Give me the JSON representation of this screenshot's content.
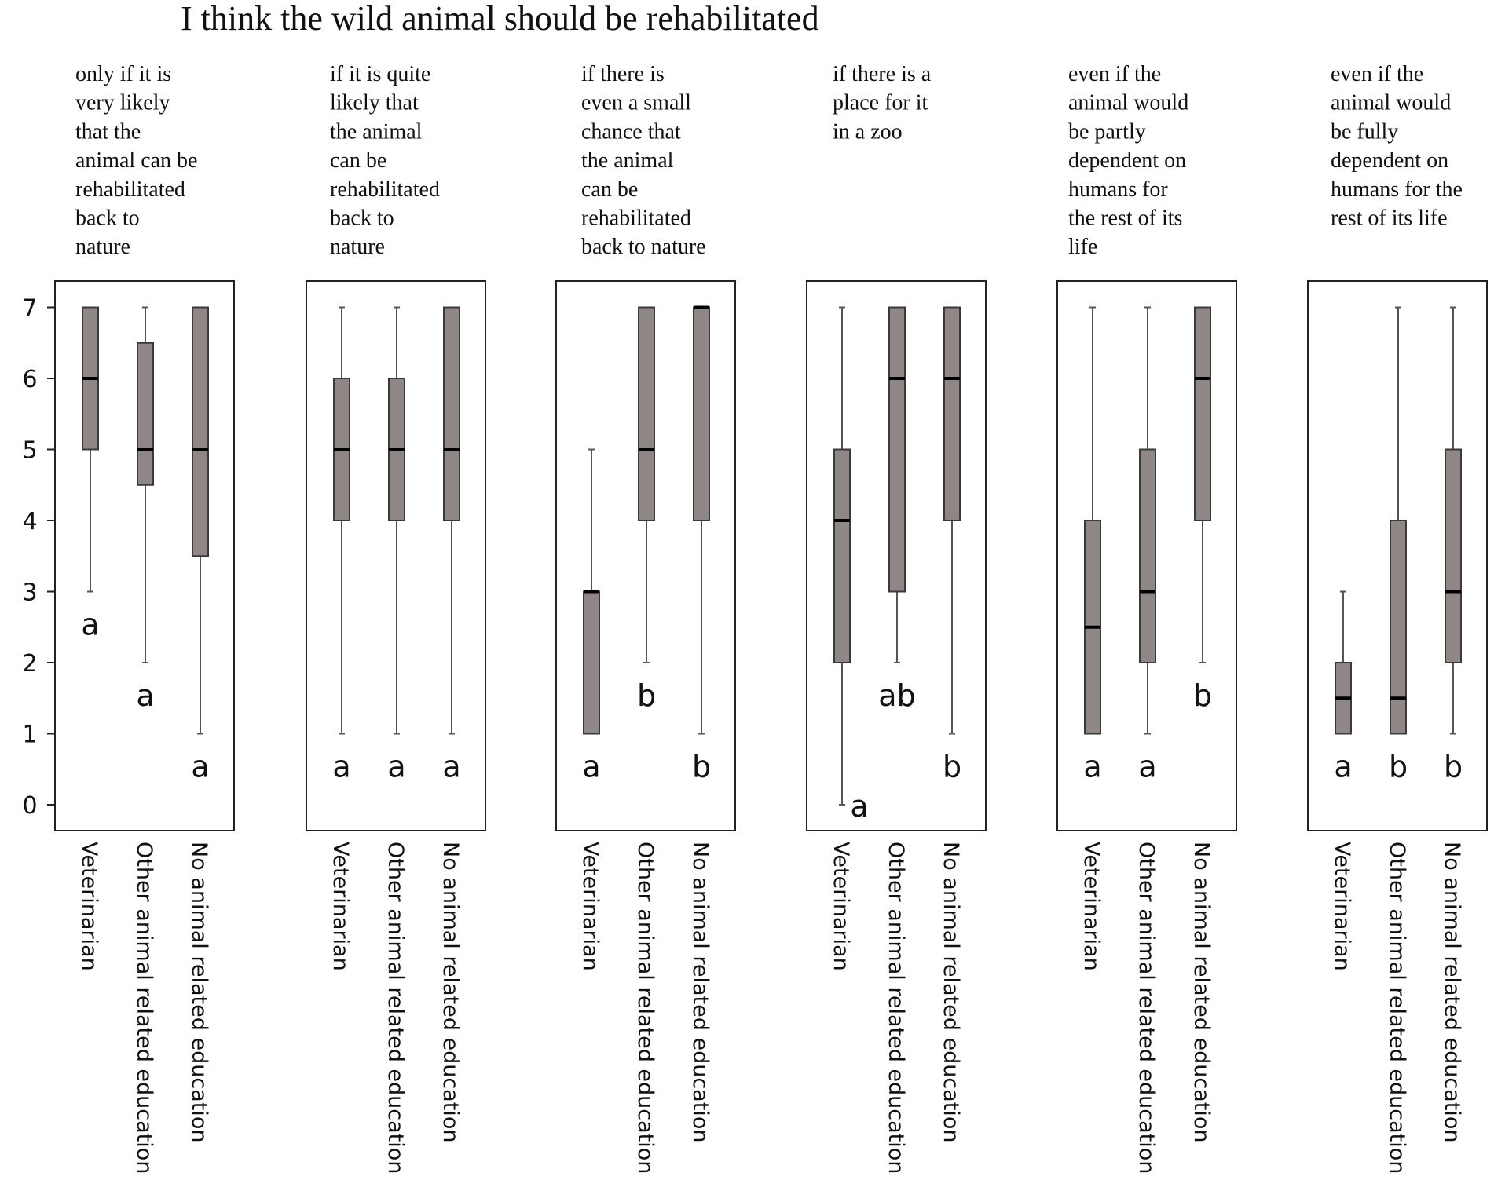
{
  "chart_data": {
    "type": "boxplot",
    "title": "I think the wild animal should be rehabilitated",
    "y_ticks": [
      0,
      1,
      2,
      3,
      4,
      5,
      6,
      7
    ],
    "ylim": [
      0,
      7
    ],
    "categories": [
      "Veterinarian",
      "Other animal related education",
      "No animal related education"
    ],
    "panels": [
      {
        "caption_lines": [
          "only if it is",
          "very likely",
          "that the",
          "animal can be",
          "rehabilitated",
          "back to",
          "nature"
        ],
        "boxes": [
          {
            "min": 3,
            "q1": 5,
            "median": 6,
            "q3": 7,
            "max": 7,
            "letter": "a"
          },
          {
            "min": 2,
            "q1": 4.5,
            "median": 5,
            "q3": 6.5,
            "max": 7,
            "letter": "a"
          },
          {
            "min": 1,
            "q1": 3.5,
            "median": 5,
            "q3": 7,
            "max": 7,
            "letter": "a"
          }
        ]
      },
      {
        "caption_lines": [
          "if it is quite",
          "likely that",
          "the animal",
          "can be",
          "rehabilitated",
          "back to",
          "nature"
        ],
        "boxes": [
          {
            "min": 1,
            "q1": 4,
            "median": 5,
            "q3": 6,
            "max": 7,
            "letter": "a"
          },
          {
            "min": 1,
            "q1": 4,
            "median": 5,
            "q3": 6,
            "max": 7,
            "letter": "a"
          },
          {
            "min": 1,
            "q1": 4,
            "median": 5,
            "q3": 7,
            "max": 7,
            "letter": "a"
          }
        ]
      },
      {
        "caption_lines": [
          "if there is",
          "even a small",
          "chance that",
          "the animal",
          "can be",
          "rehabilitated",
          "back to nature"
        ],
        "boxes": [
          {
            "min": 1,
            "q1": 1,
            "median": 3,
            "q3": 3,
            "max": 5,
            "letter": "a"
          },
          {
            "min": 2,
            "q1": 4,
            "median": 5,
            "q3": 7,
            "max": 7,
            "letter": "b"
          },
          {
            "min": 1,
            "q1": 4,
            "median": 7,
            "q3": 7,
            "max": 7,
            "letter": "b"
          }
        ]
      },
      {
        "caption_lines": [
          "if there is a",
          "place for it",
          "in a zoo"
        ],
        "boxes": [
          {
            "min": 0,
            "q1": 2,
            "median": 4,
            "q3": 5,
            "max": 7,
            "letter": "a"
          },
          {
            "min": 2,
            "q1": 3,
            "median": 6,
            "q3": 7,
            "max": 7,
            "letter": "ab"
          },
          {
            "min": 1,
            "q1": 4,
            "median": 6,
            "q3": 7,
            "max": 7,
            "letter": "b"
          }
        ]
      },
      {
        "caption_lines": [
          "even if the",
          "animal would",
          "be partly",
          "dependent on",
          "humans for",
          "the rest of its",
          "life"
        ],
        "boxes": [
          {
            "min": 1,
            "q1": 1,
            "median": 2.5,
            "q3": 4,
            "max": 7,
            "letter": "a"
          },
          {
            "min": 1,
            "q1": 2,
            "median": 3,
            "q3": 5,
            "max": 7,
            "letter": "a"
          },
          {
            "min": 2,
            "q1": 4,
            "median": 6,
            "q3": 7,
            "max": 7,
            "letter": "b"
          }
        ]
      },
      {
        "caption_lines": [
          "even if the",
          "animal would",
          "be fully",
          "dependent on",
          "humans for the",
          "rest of its life"
        ],
        "boxes": [
          {
            "min": 1,
            "q1": 1,
            "median": 1.5,
            "q3": 2,
            "max": 3,
            "letter": "a"
          },
          {
            "min": 1,
            "q1": 1,
            "median": 1.5,
            "q3": 4,
            "max": 7,
            "letter": "b"
          },
          {
            "min": 1,
            "q1": 2,
            "median": 3,
            "q3": 5,
            "max": 7,
            "letter": "b"
          }
        ]
      }
    ]
  },
  "colors": {
    "box_fill": "#8f8686",
    "box_stroke": "#3a3a3a",
    "frame": "#222222",
    "whisker": "#555555",
    "median": "#000000"
  }
}
